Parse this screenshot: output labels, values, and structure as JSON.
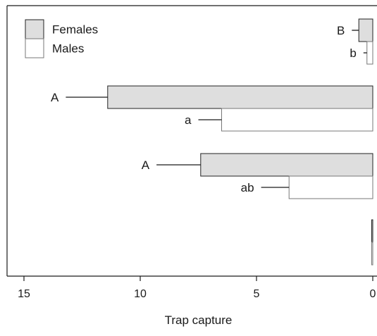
{
  "chart_data": {
    "type": "bar",
    "orientation": "horizontal",
    "x_direction": "reversed",
    "xlabel": "Trap capture",
    "ylabel": "",
    "title": "",
    "xlim": [
      0,
      15.6
    ],
    "xticks": [
      15,
      10,
      5,
      0
    ],
    "grid": false,
    "legend_position": "top-left",
    "legend": [
      {
        "name": "Females",
        "fill": "#dedede",
        "stroke": "#222222"
      },
      {
        "name": "Males",
        "fill": "#ffffff",
        "stroke": "#777777"
      }
    ],
    "groups": [
      {
        "bars": [
          {
            "series": "Females",
            "value": 0.6,
            "error": 0.3,
            "label": "B"
          },
          {
            "series": "Males",
            "value": 0.25,
            "error": 0.15,
            "label": "b"
          }
        ]
      },
      {
        "bars": [
          {
            "series": "Females",
            "value": 11.4,
            "error": 1.8,
            "label": "A"
          },
          {
            "series": "Males",
            "value": 6.5,
            "error": 1.0,
            "label": "a"
          }
        ]
      },
      {
        "bars": [
          {
            "series": "Females",
            "value": 7.4,
            "error": 1.9,
            "label": "A"
          },
          {
            "series": "Males",
            "value": 3.6,
            "error": 1.2,
            "label": "ab"
          }
        ]
      },
      {
        "bars": [
          {
            "series": "Females",
            "value": 0.03,
            "error": 0,
            "label": ""
          },
          {
            "series": "Males",
            "value": 0.03,
            "error": 0,
            "label": ""
          }
        ]
      }
    ]
  }
}
